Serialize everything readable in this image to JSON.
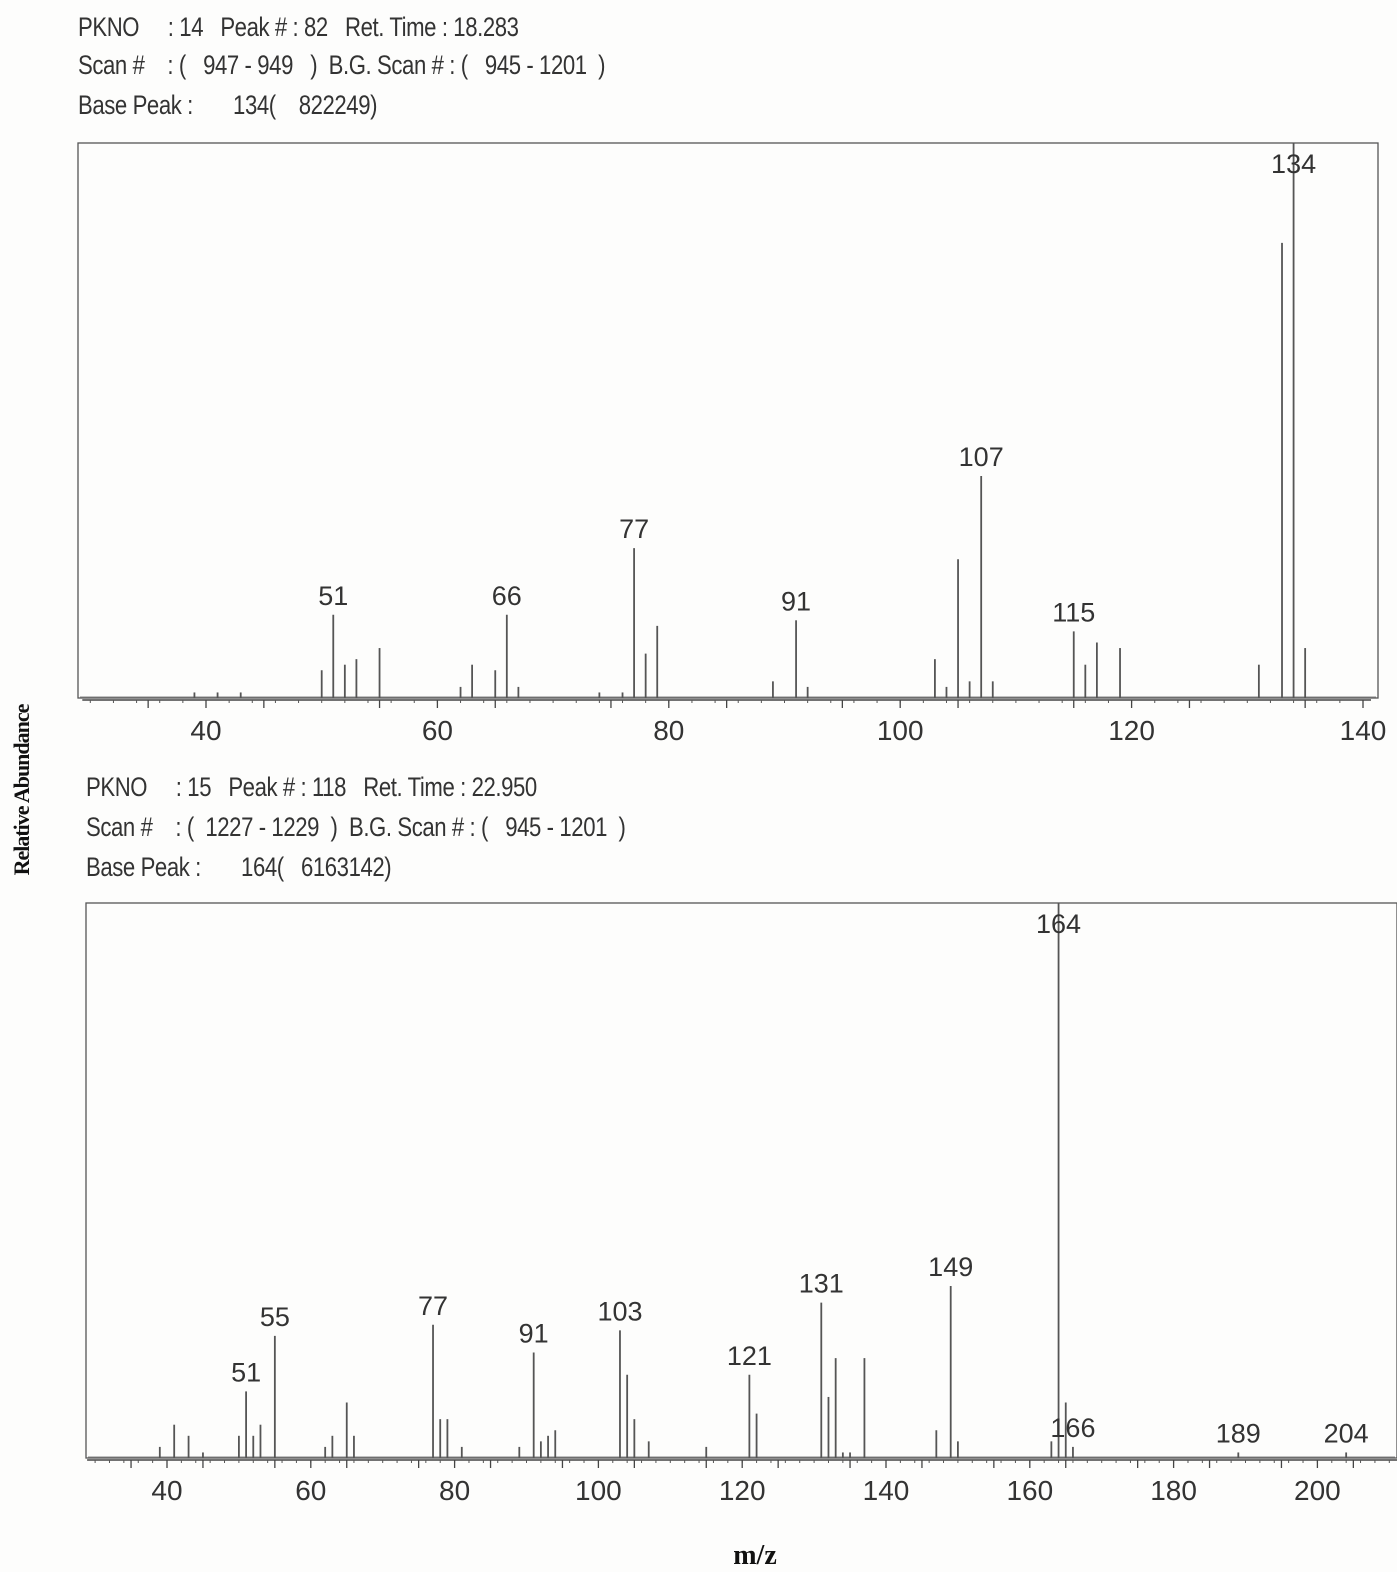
{
  "y_axis_label": "Relative Abundance",
  "x_axis_label": "m/z",
  "chart_data": [
    {
      "type": "bar",
      "header": {
        "line1": "PKNO     : 14   Peak # : 82   Ret. Time : 18.283",
        "line2": "Scan #    : (   947 - 949   )  B.G. Scan # : (   945 - 1201  )",
        "line3": "Base Peak :       134(    822249)"
      },
      "xlim": [
        30,
        140
      ],
      "ylim": [
        0,
        100
      ],
      "xticks": [
        40,
        60,
        80,
        100,
        120,
        140
      ],
      "peaks": [
        {
          "mz": 39,
          "rel": 1
        },
        {
          "mz": 41,
          "rel": 1
        },
        {
          "mz": 43,
          "rel": 1
        },
        {
          "mz": 50,
          "rel": 5
        },
        {
          "mz": 51,
          "rel": 15,
          "label": "51"
        },
        {
          "mz": 52,
          "rel": 6
        },
        {
          "mz": 53,
          "rel": 7
        },
        {
          "mz": 55,
          "rel": 9
        },
        {
          "mz": 62,
          "rel": 2
        },
        {
          "mz": 63,
          "rel": 6
        },
        {
          "mz": 65,
          "rel": 5
        },
        {
          "mz": 66,
          "rel": 15,
          "label": "66"
        },
        {
          "mz": 67,
          "rel": 2
        },
        {
          "mz": 74,
          "rel": 1
        },
        {
          "mz": 76,
          "rel": 1
        },
        {
          "mz": 77,
          "rel": 27,
          "label": "77"
        },
        {
          "mz": 78,
          "rel": 8
        },
        {
          "mz": 79,
          "rel": 13
        },
        {
          "mz": 89,
          "rel": 3
        },
        {
          "mz": 91,
          "rel": 14,
          "label": "91"
        },
        {
          "mz": 92,
          "rel": 2
        },
        {
          "mz": 103,
          "rel": 7
        },
        {
          "mz": 104,
          "rel": 2
        },
        {
          "mz": 105,
          "rel": 25
        },
        {
          "mz": 106,
          "rel": 3
        },
        {
          "mz": 107,
          "rel": 40,
          "label": "107"
        },
        {
          "mz": 108,
          "rel": 3
        },
        {
          "mz": 115,
          "rel": 12,
          "label": "115"
        },
        {
          "mz": 116,
          "rel": 6
        },
        {
          "mz": 117,
          "rel": 10
        },
        {
          "mz": 119,
          "rel": 9
        },
        {
          "mz": 131,
          "rel": 6
        },
        {
          "mz": 133,
          "rel": 82
        },
        {
          "mz": 134,
          "rel": 100,
          "label": "134"
        },
        {
          "mz": 135,
          "rel": 9
        }
      ]
    },
    {
      "type": "bar",
      "header": {
        "line1": "PKNO     : 15   Peak # : 118   Ret. Time : 22.950",
        "line2": "Scan #    : (  1227 - 1229  )  B.G. Scan # : (   945 - 1201  )",
        "line3": "Base Peak :       164(   6163142)"
      },
      "xlim": [
        30,
        210
      ],
      "ylim": [
        0,
        100
      ],
      "xticks": [
        40,
        60,
        80,
        100,
        120,
        140,
        160,
        180,
        200
      ],
      "peaks": [
        {
          "mz": 39,
          "rel": 2
        },
        {
          "mz": 41,
          "rel": 6
        },
        {
          "mz": 43,
          "rel": 4
        },
        {
          "mz": 45,
          "rel": 1
        },
        {
          "mz": 50,
          "rel": 4
        },
        {
          "mz": 51,
          "rel": 12,
          "label": "51"
        },
        {
          "mz": 52,
          "rel": 4
        },
        {
          "mz": 53,
          "rel": 6
        },
        {
          "mz": 55,
          "rel": 22,
          "label": "55"
        },
        {
          "mz": 62,
          "rel": 2
        },
        {
          "mz": 63,
          "rel": 4
        },
        {
          "mz": 65,
          "rel": 10
        },
        {
          "mz": 66,
          "rel": 4
        },
        {
          "mz": 77,
          "rel": 24,
          "label": "77"
        },
        {
          "mz": 78,
          "rel": 7
        },
        {
          "mz": 79,
          "rel": 7
        },
        {
          "mz": 81,
          "rel": 2
        },
        {
          "mz": 89,
          "rel": 2
        },
        {
          "mz": 91,
          "rel": 19,
          "label": "91"
        },
        {
          "mz": 92,
          "rel": 3
        },
        {
          "mz": 93,
          "rel": 4
        },
        {
          "mz": 94,
          "rel": 5
        },
        {
          "mz": 103,
          "rel": 23,
          "label": "103"
        },
        {
          "mz": 104,
          "rel": 15
        },
        {
          "mz": 105,
          "rel": 7
        },
        {
          "mz": 107,
          "rel": 3
        },
        {
          "mz": 115,
          "rel": 2
        },
        {
          "mz": 121,
          "rel": 15,
          "label": "121"
        },
        {
          "mz": 122,
          "rel": 8
        },
        {
          "mz": 131,
          "rel": 28,
          "label": "131"
        },
        {
          "mz": 132,
          "rel": 11
        },
        {
          "mz": 133,
          "rel": 18
        },
        {
          "mz": 134,
          "rel": 1
        },
        {
          "mz": 135,
          "rel": 1
        },
        {
          "mz": 137,
          "rel": 18
        },
        {
          "mz": 147,
          "rel": 5
        },
        {
          "mz": 149,
          "rel": 31,
          "label": "149"
        },
        {
          "mz": 150,
          "rel": 3
        },
        {
          "mz": 163,
          "rel": 3
        },
        {
          "mz": 164,
          "rel": 100,
          "label": "164"
        },
        {
          "mz": 165,
          "rel": 10
        },
        {
          "mz": 166,
          "rel": 2,
          "label": "166"
        },
        {
          "mz": 189,
          "rel": 1,
          "label": "189"
        },
        {
          "mz": 204,
          "rel": 1,
          "label": "204"
        }
      ]
    }
  ]
}
